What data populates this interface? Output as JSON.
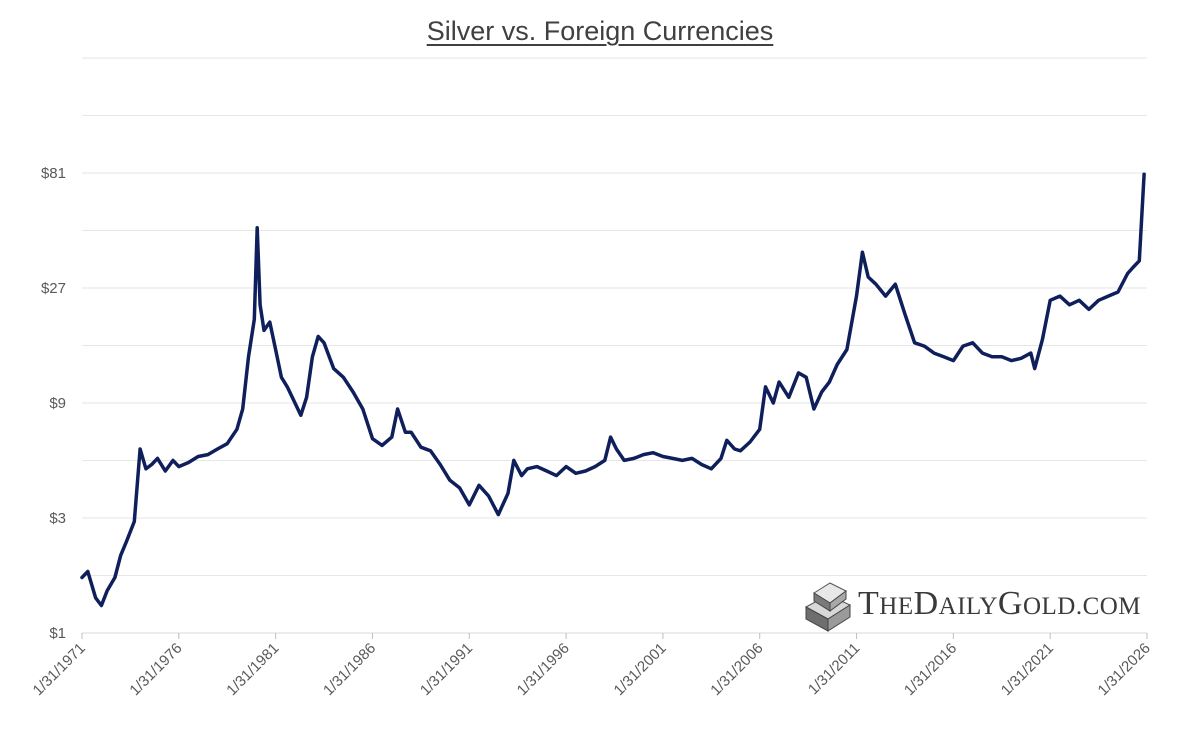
{
  "chart_data": {
    "type": "line",
    "title": "Silver vs. Foreign Currencies",
    "xlabel": "",
    "ylabel": "",
    "yscale": "log",
    "ylim": [
      1,
      243
    ],
    "y_ticks": [
      {
        "value": 1,
        "label": "$1"
      },
      {
        "value": 3,
        "label": "$3"
      },
      {
        "value": 9,
        "label": "$9"
      },
      {
        "value": 27,
        "label": "$27"
      },
      {
        "value": 81,
        "label": "$81"
      }
    ],
    "x_ticks": [
      "1/31/1971",
      "1/31/1976",
      "1/31/1981",
      "1/31/1986",
      "1/31/1991",
      "1/31/1996",
      "1/31/2001",
      "1/31/2006",
      "1/31/2011",
      "1/31/2016",
      "1/31/2021",
      "1/31/2026"
    ],
    "xlim": [
      1971.0,
      2026.0
    ],
    "grid": "horizontal",
    "line_color": "#0e1f5b",
    "series": [
      {
        "x": [
          1971.0,
          1971.3,
          1971.7,
          1972.0,
          1972.3,
          1972.7,
          1973.0,
          1973.3,
          1973.7,
          1974.0,
          1974.3,
          1974.6,
          1974.9,
          1975.3,
          1975.7,
          1976.0,
          1976.5,
          1977.0,
          1977.5,
          1978.0,
          1978.5,
          1979.0,
          1979.3,
          1979.6,
          1979.9,
          1980.05,
          1980.2,
          1980.4,
          1980.7,
          1981.0,
          1981.3,
          1981.6,
          1982.0,
          1982.3,
          1982.6,
          1982.9,
          1983.2,
          1983.5,
          1984.0,
          1984.5,
          1985.0,
          1985.5,
          1986.0,
          1986.5,
          1987.0,
          1987.3,
          1987.7,
          1988.0,
          1988.5,
          1989.0,
          1989.5,
          1990.0,
          1990.5,
          1991.0,
          1991.5,
          1992.0,
          1992.5,
          1993.0,
          1993.3,
          1993.7,
          1994.0,
          1994.5,
          1995.0,
          1995.5,
          1996.0,
          1996.5,
          1997.0,
          1997.5,
          1998.0,
          1998.3,
          1998.6,
          1999.0,
          1999.5,
          2000.0,
          2000.5,
          2001.0,
          2001.5,
          2002.0,
          2002.5,
          2003.0,
          2003.5,
          2004.0,
          2004.3,
          2004.7,
          2005.0,
          2005.5,
          2006.0,
          2006.3,
          2006.7,
          2007.0,
          2007.5,
          2008.0,
          2008.4,
          2008.8,
          2009.2,
          2009.6,
          2010.0,
          2010.5,
          2011.0,
          2011.3,
          2011.6,
          2012.0,
          2012.5,
          2013.0,
          2013.5,
          2014.0,
          2014.5,
          2015.0,
          2015.5,
          2016.0,
          2016.5,
          2017.0,
          2017.5,
          2018.0,
          2018.5,
          2019.0,
          2019.5,
          2020.0,
          2020.2,
          2020.6,
          2021.0,
          2021.5,
          2022.0,
          2022.5,
          2023.0,
          2023.5,
          2024.0,
          2024.5,
          2025.0,
          2025.3,
          2025.6,
          2025.85
        ],
        "values": [
          1.7,
          1.8,
          1.4,
          1.3,
          1.5,
          1.7,
          2.1,
          2.4,
          2.9,
          5.8,
          4.8,
          5.0,
          5.3,
          4.7,
          5.2,
          4.9,
          5.1,
          5.4,
          5.5,
          5.8,
          6.1,
          7.0,
          8.5,
          14.0,
          20.0,
          48.0,
          23.0,
          18.0,
          19.5,
          15.0,
          11.5,
          10.5,
          9.0,
          8.0,
          9.5,
          14.0,
          17.0,
          16.0,
          12.5,
          11.5,
          10.0,
          8.5,
          6.4,
          6.0,
          6.5,
          8.5,
          6.8,
          6.8,
          5.9,
          5.7,
          5.0,
          4.3,
          4.0,
          3.4,
          4.1,
          3.7,
          3.1,
          3.8,
          5.2,
          4.5,
          4.8,
          4.9,
          4.7,
          4.5,
          4.9,
          4.6,
          4.7,
          4.9,
          5.2,
          6.5,
          5.8,
          5.2,
          5.3,
          5.5,
          5.6,
          5.4,
          5.3,
          5.2,
          5.3,
          5.0,
          4.8,
          5.3,
          6.3,
          5.8,
          5.7,
          6.2,
          7.0,
          10.5,
          9.0,
          11.0,
          9.5,
          12.0,
          11.5,
          8.5,
          10.0,
          11.0,
          13.0,
          15.0,
          25.0,
          38.0,
          30.0,
          28.0,
          25.0,
          28.0,
          21.0,
          16.0,
          15.5,
          14.5,
          14.0,
          13.5,
          15.5,
          16.0,
          14.5,
          14.0,
          14.0,
          13.5,
          13.8,
          14.5,
          12.5,
          16.5,
          24.0,
          25.0,
          23.0,
          24.0,
          22.0,
          24.0,
          25.0,
          26.0,
          31.0,
          33.0,
          35.0,
          80.0
        ]
      }
    ]
  },
  "brand": {
    "name": "TheDailyGold.com",
    "logo_parts": [
      "T",
      "HE",
      "D",
      "AILY",
      "G",
      "OLD",
      ".COM"
    ]
  }
}
